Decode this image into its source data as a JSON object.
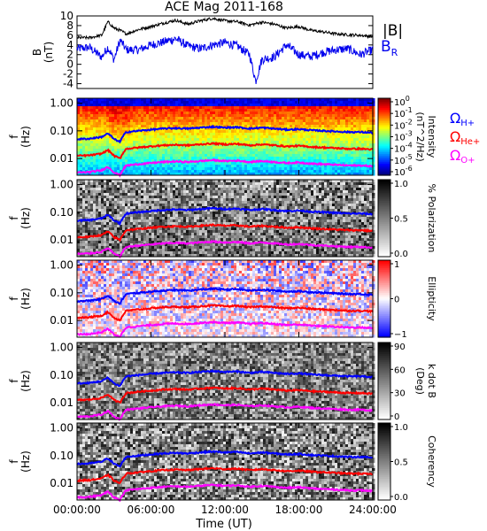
{
  "title": "ACE Mag 2011-168",
  "colors": {
    "b_total": "#000000",
    "b_r": "#0000ee",
    "h_plus": "#0000ff",
    "he_plus": "#ff0000",
    "o_plus": "#ff00ff"
  },
  "chart_data": [
    {
      "type": "line",
      "panel": "magnetic-field",
      "ylabel": "B\n(nT)",
      "ylim": [
        -5,
        10
      ],
      "yticks": [
        10,
        8,
        6,
        4,
        2,
        0,
        -2,
        -4
      ],
      "xlim": [
        0,
        24
      ],
      "series": [
        {
          "name": "|B|",
          "x": [
            0,
            1,
            2,
            2.5,
            3,
            3.5,
            4,
            5,
            6,
            7,
            8,
            9,
            10,
            11,
            12,
            13,
            14,
            15,
            16,
            17,
            18,
            19,
            20,
            21,
            22,
            23,
            24
          ],
          "values": [
            5.5,
            5.5,
            6.0,
            8.8,
            7.5,
            7.0,
            6.3,
            7.2,
            7.8,
            8.5,
            9.1,
            8.3,
            9.0,
            9.5,
            9.0,
            8.8,
            8.1,
            8.7,
            8.3,
            7.5,
            7.8,
            7.0,
            6.7,
            6.3,
            6.1,
            6.0,
            5.7
          ]
        },
        {
          "name": "B_R",
          "x": [
            0,
            1,
            2,
            2.5,
            3,
            3.5,
            4,
            5,
            6,
            7,
            8,
            9,
            10,
            11,
            12,
            13,
            14,
            14.5,
            15,
            16,
            17,
            18,
            19,
            20,
            21,
            22,
            23,
            24
          ],
          "values": [
            3.2,
            3.5,
            1.5,
            3.5,
            1.0,
            5.0,
            3.0,
            3.0,
            4.0,
            4.6,
            5.3,
            3.8,
            3.2,
            4.0,
            4.5,
            3.8,
            2.0,
            -3.5,
            1.0,
            1.5,
            4.0,
            2.0,
            1.6,
            2.5,
            3.0,
            3.2,
            2.0,
            3.0
          ]
        }
      ],
      "legend": [
        "|B|",
        "B_R"
      ]
    },
    {
      "type": "heatmap",
      "panel": "intensity",
      "ylabel": "f\n(Hz)",
      "yticks": [
        "1.00",
        "0.10",
        "0.01"
      ],
      "colorbar": {
        "ticks": [
          "10^0",
          "10^-1",
          "10^-2",
          "10^-3",
          "10^-4",
          "10^-5",
          "10^-6"
        ],
        "label": "Intensity\n(nT^2/Hz)"
      },
      "legend": [
        "Ω_H+",
        "Ω_He+",
        "Ω_O+"
      ]
    },
    {
      "type": "heatmap",
      "panel": "polarization",
      "ylabel": "f\n(Hz)",
      "yticks": [
        "1.00",
        "0.10",
        "0.01"
      ],
      "colorbar": {
        "ticks": [
          "1.0",
          "0.5",
          "0.0"
        ],
        "label": "% Polarization"
      }
    },
    {
      "type": "heatmap",
      "panel": "ellipticity",
      "ylabel": "f\n(Hz)",
      "yticks": [
        "1.00",
        "0.10",
        "0.01"
      ],
      "colorbar": {
        "ticks": [
          "1",
          "0",
          "−1"
        ],
        "label": "Ellipticity"
      }
    },
    {
      "type": "heatmap",
      "panel": "k-dot-b",
      "ylabel": "f\n(Hz)",
      "yticks": [
        "1.00",
        "0.10",
        "0.01"
      ],
      "colorbar": {
        "ticks": [
          "90",
          "60",
          "30",
          "0"
        ],
        "label": "k dot B\n(Deg)"
      }
    },
    {
      "type": "heatmap",
      "panel": "coherency",
      "ylabel": "f\n(Hz)",
      "yticks": [
        "1.00",
        "0.10",
        "0.01"
      ],
      "colorbar": {
        "ticks": [
          "1.0",
          "0.5",
          "0.0"
        ],
        "label": "Coherency"
      }
    }
  ],
  "gyrofrequencies": {
    "x": [
      0,
      1,
      2,
      2.5,
      3,
      3.5,
      4,
      5,
      6,
      7,
      8,
      9,
      10,
      11,
      12,
      13,
      14,
      15,
      16,
      17,
      18,
      19,
      20,
      21,
      22,
      23,
      24
    ],
    "h_plus_hz": [
      0.05,
      0.052,
      0.06,
      0.08,
      0.05,
      0.04,
      0.09,
      0.1,
      0.11,
      0.12,
      0.125,
      0.12,
      0.13,
      0.14,
      0.13,
      0.135,
      0.12,
      0.13,
      0.12,
      0.11,
      0.115,
      0.105,
      0.1,
      0.095,
      0.09,
      0.09,
      0.085
    ]
  },
  "xaxis": {
    "ticks": [
      "00:00:00",
      "06:00:00",
      "12:00:00",
      "18:00:00",
      "24:00:00"
    ],
    "label": "Time (UT)"
  }
}
